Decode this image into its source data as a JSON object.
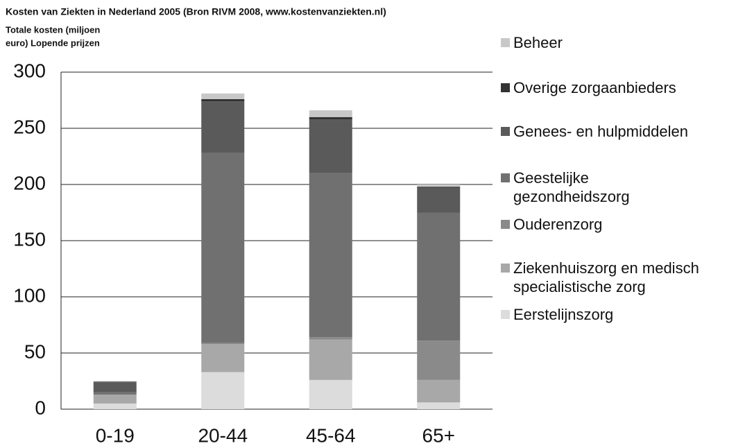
{
  "chart_data": {
    "type": "bar",
    "stacked": true,
    "title": "Kosten van Ziekten in Nederland 2005 (Bron RIVM 2008, www.kostenvanziekten.nl)",
    "ylabel": [
      "Totale kosten (miljoen",
      "euro) Lopende prijzen"
    ],
    "categories": [
      "0-19",
      "20-44",
      "45-64",
      "65+"
    ],
    "series": [
      {
        "name": "Eerstelijnszorg",
        "color": "#dcdcdc",
        "values": [
          5,
          33,
          26,
          6
        ]
      },
      {
        "name": "Ziekenhuiszorg en medisch specialistische zorg",
        "color": "#a8a8a8",
        "values": [
          8,
          25,
          36,
          20
        ]
      },
      {
        "name": "Ouderenzorg",
        "color": "#8a8a8a",
        "values": [
          0,
          1,
          2,
          35
        ]
      },
      {
        "name": "Geestelijke gezondheidszorg",
        "color": "#707070",
        "values": [
          2,
          169,
          146,
          114
        ]
      },
      {
        "name": "Genees- en hulpmiddelen",
        "color": "#5a5a5a",
        "values": [
          9,
          46,
          48,
          22
        ]
      },
      {
        "name": "Overige zorgaanbieders",
        "color": "#333333",
        "values": [
          0.5,
          2,
          2,
          1
        ]
      },
      {
        "name": "Beheer",
        "color": "#c8c8c8",
        "values": [
          0.5,
          5,
          6,
          2
        ]
      }
    ],
    "ylim": [
      0,
      300
    ],
    "yticks": [
      0,
      50,
      100,
      150,
      200,
      250,
      300
    ],
    "grid": true,
    "legend": "right"
  }
}
